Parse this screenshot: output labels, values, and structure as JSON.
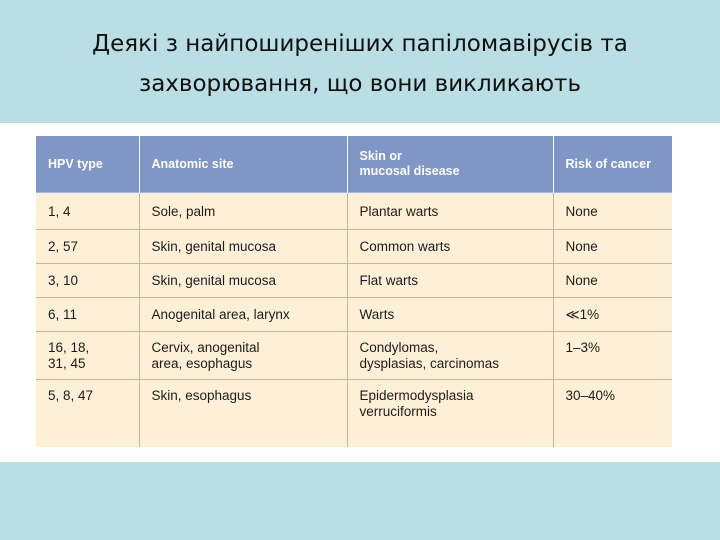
{
  "slide": {
    "title": "Деякі з найпоширеніших папіломавірусів та захворювання, що вони викликають"
  },
  "table": {
    "headers": [
      "HPV type",
      "Anatomic site",
      "Skin or\nmucosal disease",
      "Risk of cancer"
    ],
    "rows": [
      [
        "1, 4",
        "Sole, palm",
        "Plantar warts",
        "None"
      ],
      [
        "2, 57",
        "Skin, genital mucosa",
        "Common warts",
        "None"
      ],
      [
        "3, 10",
        "Skin, genital mucosa",
        "Flat warts",
        "None"
      ],
      [
        "6, 11",
        "Anogenital area, larynx",
        "Warts",
        "≪1%"
      ],
      [
        "16, 18,\n31, 45",
        "Cervix, anogenital\narea, esophagus",
        "Condylomas,\ndysplasias, carcinomas",
        "1–3%"
      ],
      [
        "5, 8, 47",
        "Skin, esophagus",
        "Epidermodysplasia\nverruciformis",
        "30–40%"
      ]
    ]
  },
  "colors": {
    "background": "#b9dfe4",
    "header_fill": "#7f96c6",
    "cell_fill": "#fdf0d7"
  }
}
